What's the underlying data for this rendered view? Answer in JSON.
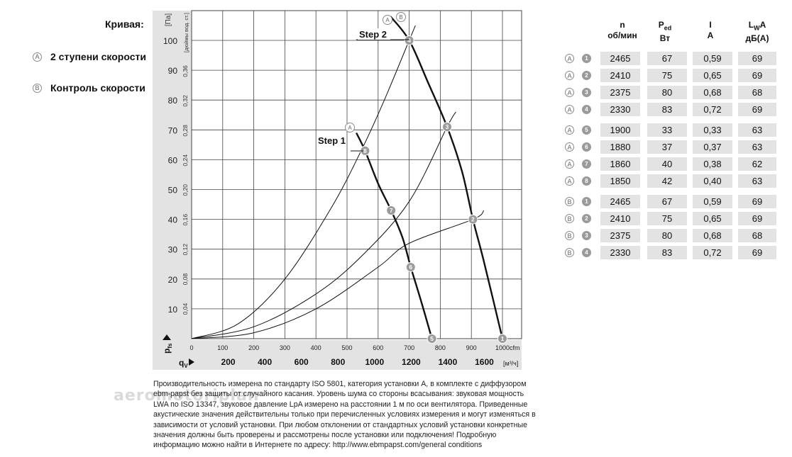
{
  "legend": {
    "title": "Кривая:",
    "items": [
      {
        "key": "A",
        "label": "2 ступени скорости"
      },
      {
        "key": "B",
        "label": "Контроль скорости"
      }
    ]
  },
  "table": {
    "headers": [
      {
        "main": "n",
        "sub": "",
        "unit": "об/мин"
      },
      {
        "main": "P",
        "sub": "ed",
        "unit": "Вт"
      },
      {
        "main": "I",
        "sub": "",
        "unit": "A"
      },
      {
        "main": "L",
        "sub": "W",
        "main2": "A",
        "unit": "дБ(A)"
      }
    ],
    "rows": [
      {
        "curve": "A",
        "point": "1",
        "n": "2465",
        "p": "67",
        "i": "0,59",
        "lwa": "69"
      },
      {
        "curve": "A",
        "point": "2",
        "n": "2410",
        "p": "75",
        "i": "0,65",
        "lwa": "69"
      },
      {
        "curve": "A",
        "point": "3",
        "n": "2375",
        "p": "80",
        "i": "0,68",
        "lwa": "68"
      },
      {
        "curve": "A",
        "point": "4",
        "n": "2330",
        "p": "83",
        "i": "0,72",
        "lwa": "69"
      },
      {
        "curve": "A",
        "point": "5",
        "n": "1900",
        "p": "33",
        "i": "0,33",
        "lwa": "63"
      },
      {
        "curve": "A",
        "point": "6",
        "n": "1880",
        "p": "37",
        "i": "0,37",
        "lwa": "63"
      },
      {
        "curve": "A",
        "point": "7",
        "n": "1860",
        "p": "40",
        "i": "0,38",
        "lwa": "62"
      },
      {
        "curve": "A",
        "point": "8",
        "n": "1850",
        "p": "42",
        "i": "0,40",
        "lwa": "63"
      },
      {
        "curve": "B",
        "point": "1",
        "n": "2465",
        "p": "67",
        "i": "0,59",
        "lwa": "69"
      },
      {
        "curve": "B",
        "point": "2",
        "n": "2410",
        "p": "75",
        "i": "0,65",
        "lwa": "69"
      },
      {
        "curve": "B",
        "point": "3",
        "n": "2375",
        "p": "80",
        "i": "0,68",
        "lwa": "68"
      },
      {
        "curve": "B",
        "point": "4",
        "n": "2330",
        "p": "83",
        "i": "0,72",
        "lwa": "69"
      }
    ]
  },
  "note": "Производительность измерена по стандарту ISO 5801, категория установки A, в комплекте с диффузором ebm-papst без защиты от случайного касания. Уровень шума со стороны всасывания: звуковая мощность LWA по ISO 13347, звуковое давление LpA измерено на расстоянии 1 м по оси вентилятора. Приведенные акустические значения действительны только при перечисленных условиях измерения и могут изменяться в зависимости от условий установки. При любом отклонении от стандартных условий установки конкретные значения должны быть проверены и рассмотрены после установки или подключения! Подробную информацию можно найти в Интернете по адресу: http://www.ebmpapst.com/general conditions",
  "watermark": "aeromotoriplan",
  "chart_data": {
    "type": "line",
    "ylabel_pa": "[Па]",
    "ylabel_inwg": "[дюймы вод. ст.]",
    "ylabel_ps": "p",
    "ylabel_ps_sub": "fs",
    "xlabel_qv": "q",
    "xlabel_qv_sub": "V",
    "x_unit_cfm": "cfm",
    "x_unit_m3h": "[м³/ч]",
    "xlim_cfm": [
      0,
      1000
    ],
    "ylim_pa": [
      0,
      108
    ],
    "pa_ticks": [
      10,
      20,
      30,
      40,
      50,
      60,
      70,
      80,
      90,
      100
    ],
    "inwg_ticks": [
      {
        "pa": 9.96,
        "label": "0,04"
      },
      {
        "pa": 19.93,
        "label": "0,08"
      },
      {
        "pa": 29.89,
        "label": "0,12"
      },
      {
        "pa": 39.85,
        "label": "0,16"
      },
      {
        "pa": 49.82,
        "label": "0,20"
      },
      {
        "pa": 59.78,
        "label": "0,24"
      },
      {
        "pa": 69.74,
        "label": "0,28"
      },
      {
        "pa": 79.71,
        "label": "0,32"
      },
      {
        "pa": 89.67,
        "label": "0,36"
      }
    ],
    "cfm_ticks": [
      0,
      100,
      200,
      300,
      400,
      500,
      600,
      700,
      800,
      900,
      1000
    ],
    "m3h_ticks": [
      200,
      400,
      600,
      800,
      1000,
      1200,
      1400,
      1600
    ],
    "grid": true,
    "series": [
      {
        "name": "Step 2",
        "style": "thick",
        "x": [
          640,
          700,
          760,
          822,
          870,
          905,
          940,
          1000
        ],
        "y": [
          108,
          100,
          86,
          71,
          56,
          40,
          26,
          0
        ]
      },
      {
        "name": "Step 1",
        "style": "thick",
        "x": [
          530,
          558,
          600,
          642,
          678,
          705,
          740,
          773
        ],
        "y": [
          69,
          63,
          52,
          43,
          34,
          24,
          12,
          0
        ]
      },
      {
        "style": "thin",
        "x": [
          0,
          150,
          300,
          450,
          550,
          620,
          700,
          720
        ],
        "y": [
          0,
          5,
          20,
          44,
          64,
          80,
          100,
          105
        ]
      },
      {
        "style": "thin",
        "x": [
          0,
          200,
          400,
          550,
          700,
          822,
          850
        ],
        "y": [
          0,
          4,
          15,
          28,
          46,
          71,
          76
        ]
      },
      {
        "style": "thin",
        "x": [
          0,
          200,
          400,
          600,
          700,
          905,
          940
        ],
        "y": [
          0,
          2,
          10,
          24,
          32,
          40,
          43
        ]
      }
    ],
    "points": [
      {
        "label": "4",
        "x": 700,
        "y": 100
      },
      {
        "label": "3",
        "x": 822,
        "y": 71
      },
      {
        "label": "2",
        "x": 905,
        "y": 40
      },
      {
        "label": "1",
        "x": 1000,
        "y": 0
      },
      {
        "label": "8",
        "x": 558,
        "y": 63
      },
      {
        "label": "7",
        "x": 642,
        "y": 43
      },
      {
        "label": "6",
        "x": 705,
        "y": 24
      },
      {
        "label": "5",
        "x": 773,
        "y": 0
      }
    ],
    "annotations": [
      {
        "text": "Step 2"
      },
      {
        "text": "Step 1"
      }
    ]
  }
}
